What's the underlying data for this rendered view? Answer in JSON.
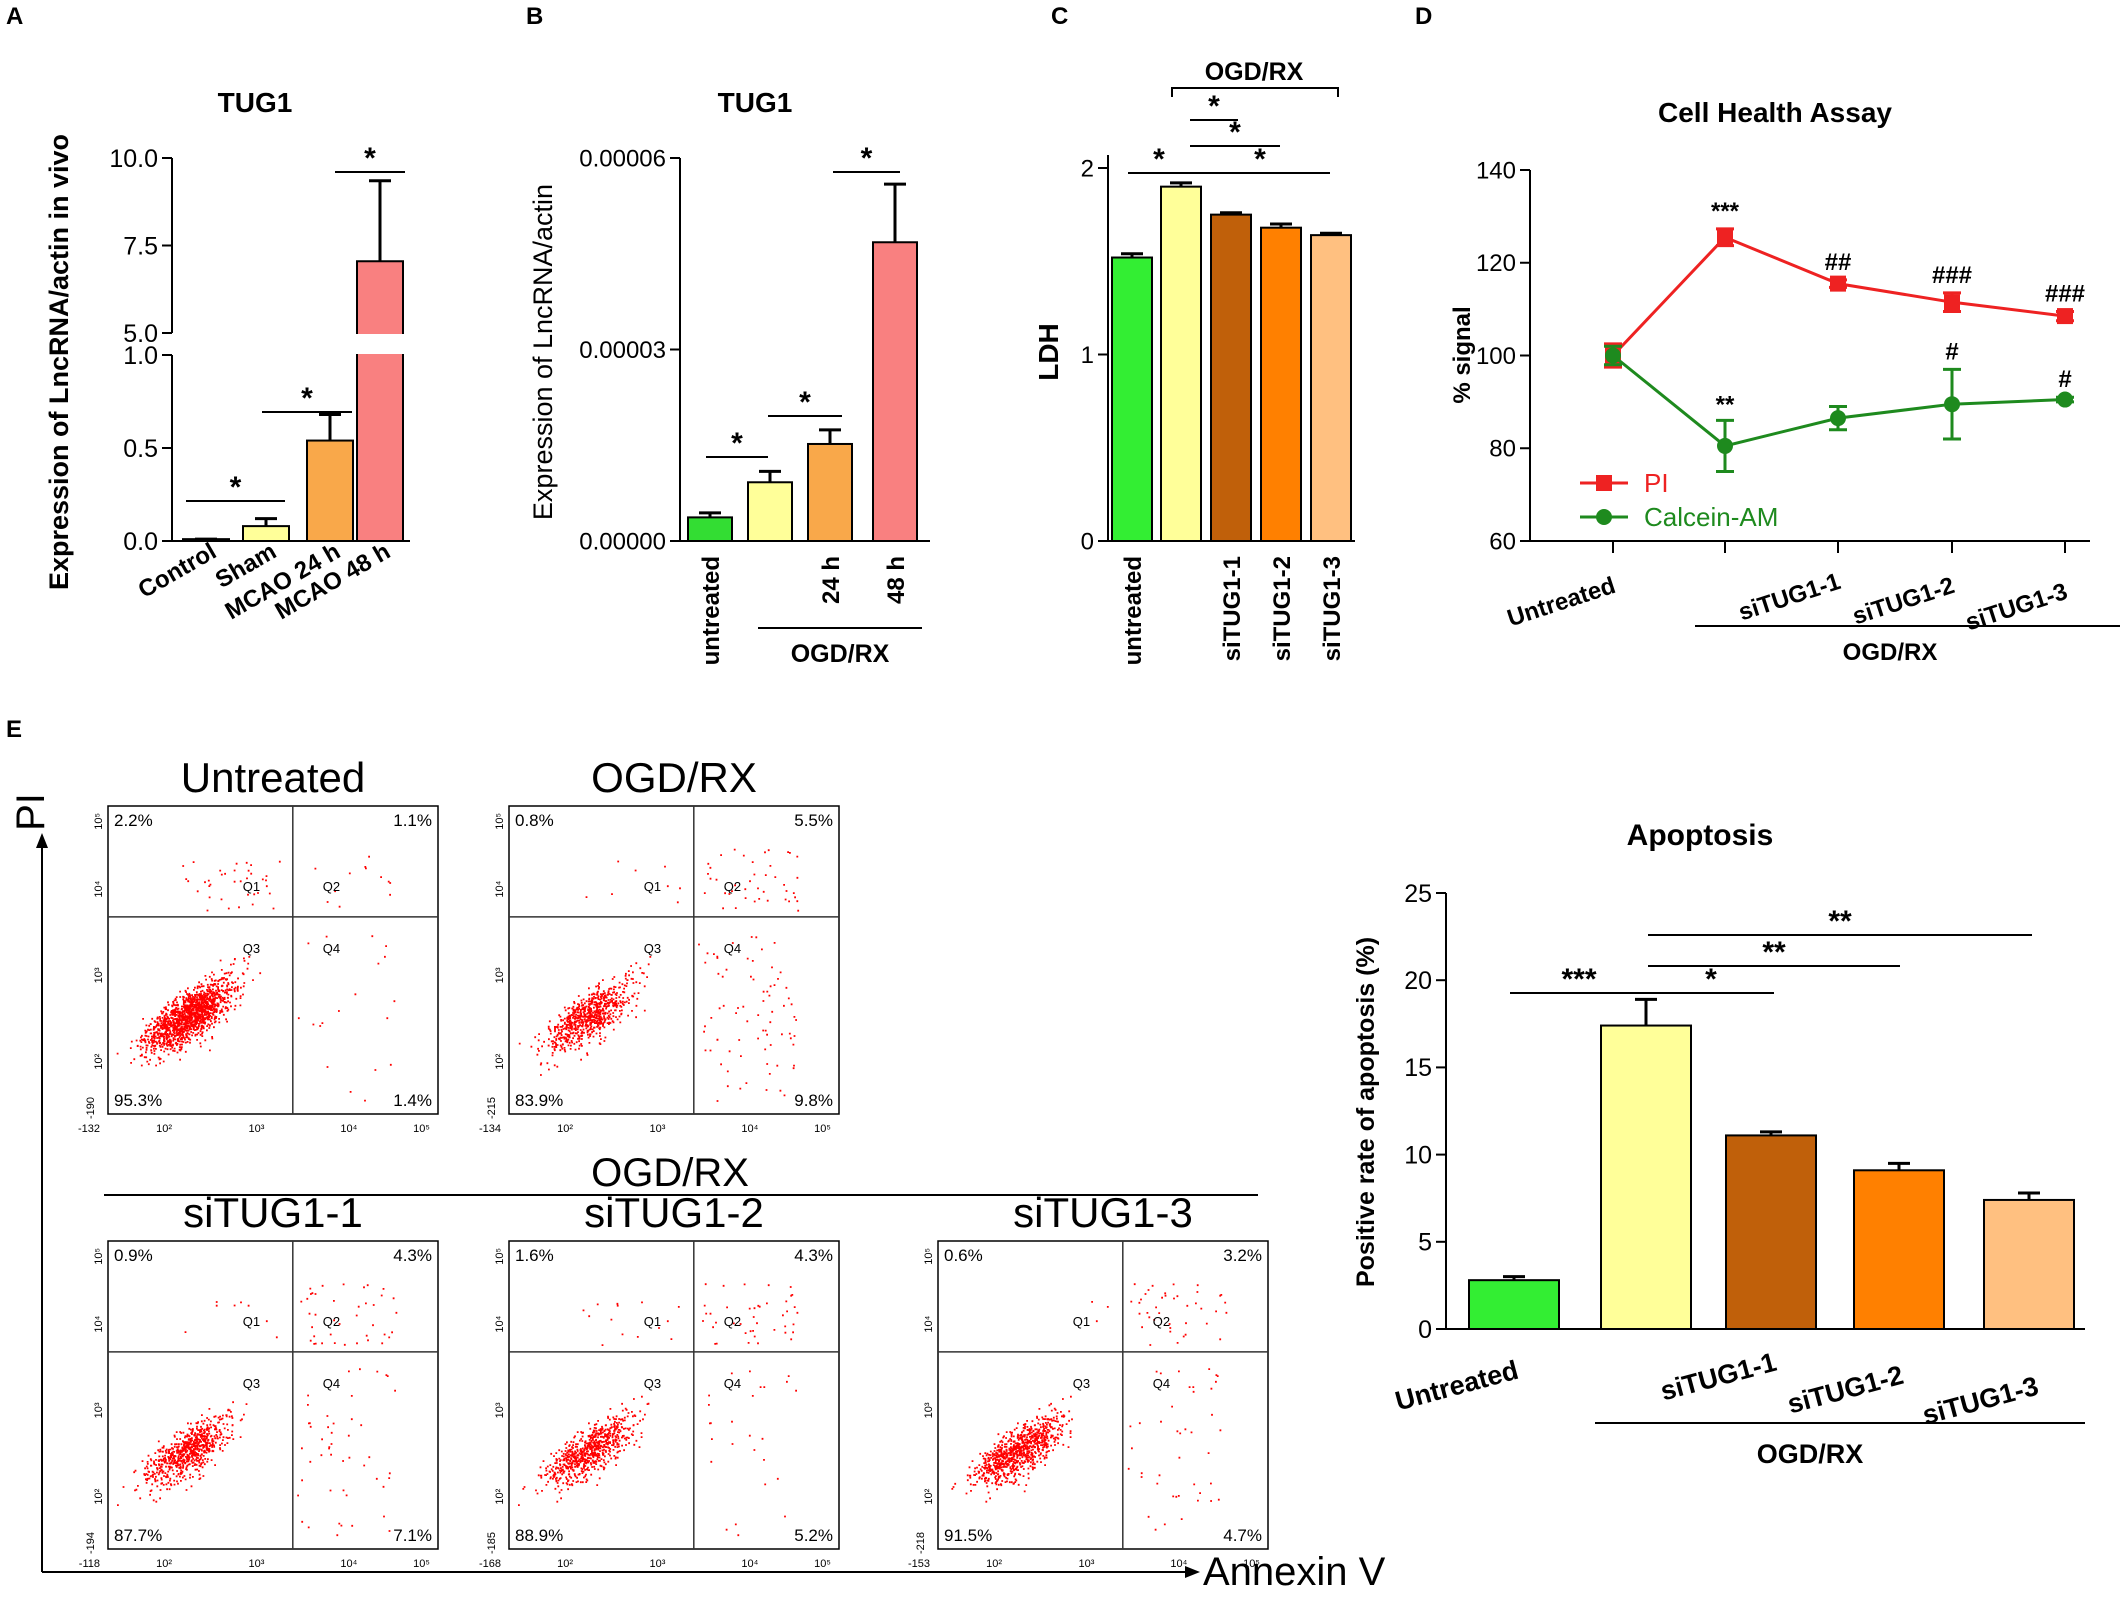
{
  "panels": {
    "A": {
      "letter": "A",
      "title": "TUG1",
      "ylabel": "Expression of LncRNA/actin in vivo"
    },
    "B": {
      "letter": "B",
      "title": "TUG1",
      "ylabel": "Expression of LncRNA/actin",
      "group_label": "OGD/RX"
    },
    "C": {
      "letter": "C",
      "ylabel": "LDH",
      "group_label": "OGD/RX"
    },
    "D": {
      "letter": "D",
      "title": "Cell Health Assay",
      "ylabel": "% signal",
      "group_label": "OGD/RX"
    },
    "E": {
      "letter": "E",
      "xlabel": "Annexin V",
      "ylabel": "PI",
      "group_label": "OGD/RX",
      "bar_title": "Apoptosis",
      "bar_ylabel": "Positive rate of apoptosis (%)",
      "bar_group_label": "OGD/RX"
    }
  },
  "chart_data": [
    {
      "panel": "A",
      "type": "bar",
      "title": "TUG1",
      "ylabel": "Expression of LncRNA/actin in vivo",
      "broken_axis": true,
      "categories": [
        "Control",
        "Sham",
        "MCAO 24 h",
        "MCAO 48 h"
      ],
      "values": [
        0.01,
        0.08,
        0.54,
        7.05
      ],
      "errors": [
        0.0,
        0.04,
        0.14,
        2.3
      ],
      "colors": [
        "#ffffff",
        "#ffff99",
        "#f9a84a",
        "#f98080"
      ],
      "ylim_lower": [
        0,
        1.0
      ],
      "ylim_upper": [
        5.0,
        10.0
      ],
      "yticks": [
        "0.0",
        "0.5",
        "1.0",
        "5.0",
        "7.5",
        "10.0"
      ],
      "significance": [
        "*",
        "*",
        "*"
      ]
    },
    {
      "panel": "B",
      "type": "bar",
      "title": "TUG1",
      "ylabel": "Expression of LncRNA/actin",
      "categories": [
        "untreated",
        "",
        "24 h",
        "48 h"
      ],
      "values": [
        3.7e-06,
        9.2e-06,
        1.52e-05,
        4.68e-05
      ],
      "errors": [
        7e-07,
        1.7e-06,
        2.2e-06,
        9.1e-06
      ],
      "colors": [
        "#33dd33",
        "#ffff99",
        "#f9a84a",
        "#f98080"
      ],
      "ylim": [
        0,
        6e-05
      ],
      "yticks": [
        "0.00000",
        "0.00003",
        "0.00006"
      ],
      "significance": [
        "*",
        "*",
        "*"
      ]
    },
    {
      "panel": "C",
      "type": "bar",
      "ylabel": "LDH",
      "categories": [
        "untreated",
        "",
        "siTUG1-1",
        "siTUG1-2",
        "siTUG1-3"
      ],
      "values": [
        1.52,
        1.9,
        1.75,
        1.68,
        1.64
      ],
      "errors": [
        0.02,
        0.02,
        0.01,
        0.02,
        0.01
      ],
      "colors": [
        "#33ee33",
        "#ffff99",
        "#c0600a",
        "#ff8000",
        "#ffc080"
      ],
      "ylim": [
        0,
        2
      ],
      "yticks": [
        "0",
        "1",
        "2"
      ],
      "significance": [
        "*",
        "*",
        "*",
        "*"
      ]
    },
    {
      "panel": "D",
      "type": "line",
      "title": "Cell Health Assay",
      "ylabel": "% signal",
      "x": [
        "Untreated",
        "",
        "siTUG1-1",
        "siTUG1-2",
        "siTUG1-3"
      ],
      "ylim": [
        60,
        140
      ],
      "yticks": [
        "60",
        "80",
        "100",
        "120",
        "140"
      ],
      "series": [
        {
          "name": "PI",
          "color": "#ee2222",
          "values": [
            100,
            125.5,
            115.5,
            111.5,
            108.5
          ],
          "errors": [
            2.5,
            1.8,
            0.8,
            2.0,
            1.0
          ],
          "labels": [
            "",
            "***",
            "##",
            "###",
            "###"
          ]
        },
        {
          "name": "Calcein-AM",
          "color": "#1e8a1e",
          "values": [
            100,
            80.5,
            86.5,
            89.5,
            90.5
          ],
          "errors": [
            2.0,
            5.5,
            2.5,
            7.5,
            0.5
          ],
          "labels": [
            "",
            "**",
            "",
            "#",
            "#"
          ]
        }
      ]
    },
    {
      "panel": "E",
      "type": "scatter",
      "subtype": "flow-cytometry",
      "xlabel": "Annexin V",
      "ylabel": "PI",
      "plots": [
        {
          "name": "Untreated",
          "q1": "2.2%",
          "q2": "1.1%",
          "q3": "95.3%",
          "q4": "1.4%",
          "xmin": "-132",
          "ymin": "-190"
        },
        {
          "name": "OGD/RX",
          "q1": "0.8%",
          "q2": "5.5%",
          "q3": "83.9%",
          "q4": "9.8%",
          "xmin": "-134",
          "ymin": "-215"
        },
        {
          "name": "siTUG1-1",
          "q1": "0.9%",
          "q2": "4.3%",
          "q3": "87.7%",
          "q4": "7.1%",
          "xmin": "-118",
          "ymin": "-194"
        },
        {
          "name": "siTUG1-2",
          "q1": "1.6%",
          "q2": "4.3%",
          "q3": "88.9%",
          "q4": "5.2%",
          "xmin": "-168",
          "ymin": "-185"
        },
        {
          "name": "siTUG1-3",
          "q1": "0.6%",
          "q2": "3.2%",
          "q3": "91.5%",
          "q4": "4.7%",
          "xmin": "-153",
          "ymin": "-218"
        }
      ],
      "quadrant_labels": [
        "Q1",
        "Q2",
        "Q3",
        "Q4"
      ],
      "ticks": [
        "10²",
        "10³",
        "10⁴",
        "10⁵"
      ]
    },
    {
      "panel": "E",
      "type": "bar",
      "title": "Apoptosis",
      "ylabel": "Positive rate of apoptosis (%)",
      "categories": [
        "Untreated",
        "",
        "siTUG1-1",
        "siTUG1-2",
        "siTUG1-3"
      ],
      "values": [
        2.8,
        17.4,
        11.1,
        9.1,
        7.4
      ],
      "errors": [
        0.2,
        1.5,
        0.2,
        0.4,
        0.4
      ],
      "colors": [
        "#33ee33",
        "#ffff99",
        "#c0600a",
        "#ff8000",
        "#ffc080"
      ],
      "ylim": [
        0,
        25
      ],
      "yticks": [
        "0",
        "5",
        "10",
        "15",
        "20",
        "25"
      ],
      "significance": [
        "***",
        "*",
        "**",
        "**"
      ]
    }
  ]
}
